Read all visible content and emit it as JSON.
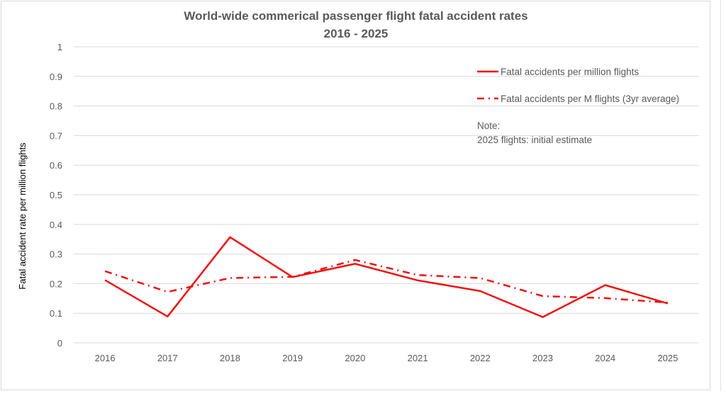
{
  "chart_data": {
    "type": "line",
    "title": "World-wide commerical passenger flight fatal accident rates",
    "subtitle": "2016 - 2025",
    "xlabel": "",
    "ylabel": "Fatal accident rate per million flights",
    "ylim": [
      0,
      1
    ],
    "yticks": [
      "0",
      "0.1",
      "0.2",
      "0.3",
      "0.4",
      "0.5",
      "0.6",
      "0.7",
      "0.8",
      "0.9",
      "1"
    ],
    "ytick_values": [
      0,
      0.1,
      0.2,
      0.3,
      0.4,
      0.5,
      0.6,
      0.7,
      0.8,
      0.9,
      1
    ],
    "grid": true,
    "legend_position": "top-right",
    "categories": [
      "2016",
      "2017",
      "2018",
      "2019",
      "2020",
      "2021",
      "2022",
      "2023",
      "2024",
      "2025"
    ],
    "series": [
      {
        "name": "Fatal accidents per million flights",
        "style": "solid",
        "color": "#EE1111",
        "values": [
          0.212,
          0.089,
          0.357,
          0.222,
          0.267,
          0.211,
          0.175,
          0.087,
          0.195,
          0.133
        ]
      },
      {
        "name": "Fatal accidents per M flights (3yr average)",
        "style": "dash-dot",
        "color": "#EE1111",
        "values": [
          0.242,
          0.172,
          0.219,
          0.223,
          0.28,
          0.229,
          0.219,
          0.158,
          0.151,
          0.136
        ]
      }
    ],
    "annotation": {
      "line1": "Note:",
      "line2": "2025 flights: initial estimate"
    }
  }
}
